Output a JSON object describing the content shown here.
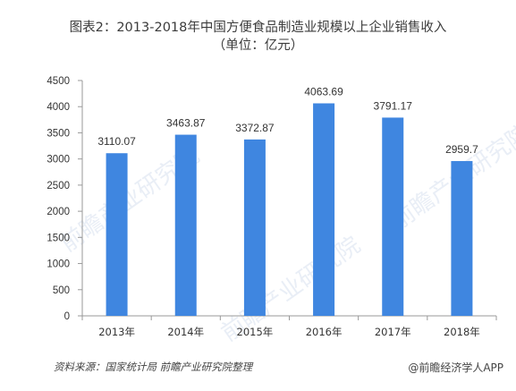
{
  "title": "图表2：2013-2018年中国方便食品制造业规模以上企业销售收入",
  "subtitle": "（单位：亿元）",
  "source": "资料来源：国家统计局 前瞻产业研究院整理",
  "brand": "@前瞻经济学人APP",
  "watermark": "前瞻产业研究院",
  "colors": {
    "bar": "#3f86e0",
    "axis": "#999999",
    "text": "#333333"
  },
  "chart_data": {
    "type": "bar",
    "title": "图表2：2013-2018年中国方便食品制造业规模以上企业销售收入",
    "subtitle": "（单位：亿元）",
    "categories": [
      "2013年",
      "2014年",
      "2015年",
      "2016年",
      "2017年",
      "2018年"
    ],
    "values": [
      3110.07,
      3463.87,
      3372.87,
      4063.69,
      3791.17,
      2959.7
    ],
    "value_labels": [
      "3110.07",
      "3463.87",
      "3372.87",
      "4063.69",
      "3791.17",
      "2959.7"
    ],
    "ylim": [
      0,
      4500
    ],
    "yticks": [
      0,
      500,
      1000,
      1500,
      2000,
      2500,
      3000,
      3500,
      4000,
      4500
    ],
    "grid": false,
    "legend": "none"
  }
}
